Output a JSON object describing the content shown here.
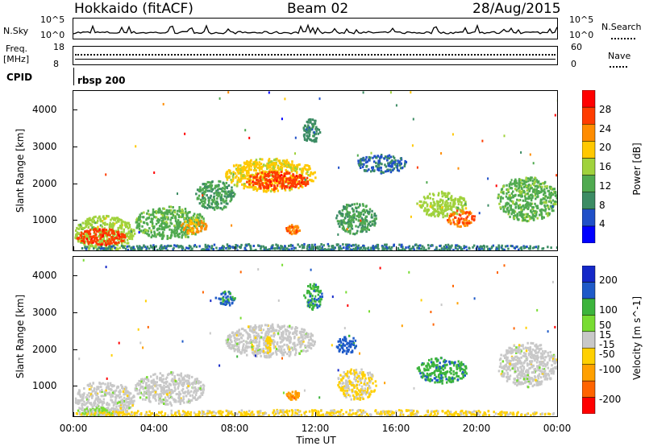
{
  "header": {
    "station": "Hokkaido (fitACF)",
    "beam": "Beam 02",
    "date": "28/Aug/2015"
  },
  "noise_panel": {
    "left_label": "N.Sky",
    "right_label": "N.Search",
    "left_ticks": [
      "10^5",
      "10^0"
    ],
    "right_ticks": [
      "10^5",
      "10^0"
    ]
  },
  "freq_panel": {
    "left_label_1": "Freq.",
    "left_label_2": "[MHz]",
    "right_label": "Nave",
    "left_ticks": [
      "18",
      "8"
    ],
    "right_ticks": [
      "60",
      "0"
    ]
  },
  "cpid_panel": {
    "label": "CPID",
    "value": "rbsp 200"
  },
  "colors": {
    "velocity_scale": [
      "#ff0000",
      "#ff6400",
      "#ffa000",
      "#ffd000",
      "#c8c8c8",
      "#78dc32",
      "#3cb43c",
      "#1e5ac8",
      "#1428c8"
    ],
    "power_scale": [
      "#0000ff",
      "#2050c8",
      "#3c8c64",
      "#50aa50",
      "#a0d23c",
      "#ffc800",
      "#ff8c00",
      "#ff3c00",
      "#ff0000"
    ]
  },
  "chart_data": [
    {
      "type": "heatmap",
      "title": "",
      "quantity": "Power",
      "xlabel": "",
      "ylabel": "Slant Range [km]",
      "x_ticks": [
        "00:00",
        "04:00",
        "08:00",
        "12:00",
        "16:00",
        "20:00",
        "00:00"
      ],
      "x_range_hours": [
        0,
        24
      ],
      "y_ticks": [
        1000,
        2000,
        3000,
        4000
      ],
      "ylim": [
        180,
        4500
      ],
      "colorbar": {
        "label": "Power [dB]",
        "ticks": [
          4,
          8,
          12,
          16,
          20,
          24,
          28
        ],
        "range": [
          0,
          32
        ]
      },
      "regions": [
        {
          "t_start": 0.0,
          "t_end": 3.0,
          "r_min": 180,
          "r_max": 1150,
          "level": 16
        },
        {
          "t_start": 0.1,
          "t_end": 2.6,
          "r_min": 350,
          "r_max": 800,
          "level": 27
        },
        {
          "t_start": 3.0,
          "t_end": 6.5,
          "r_min": 500,
          "r_max": 1400,
          "level": 13
        },
        {
          "t_start": 5.3,
          "t_end": 6.6,
          "r_min": 650,
          "r_max": 1050,
          "level": 22
        },
        {
          "t_start": 6.0,
          "t_end": 8.0,
          "r_min": 1300,
          "r_max": 2100,
          "level": 11
        },
        {
          "t_start": 7.5,
          "t_end": 12.0,
          "r_min": 1800,
          "r_max": 2700,
          "level": 19
        },
        {
          "t_start": 8.5,
          "t_end": 11.7,
          "r_min": 1850,
          "r_max": 2350,
          "level": 27
        },
        {
          "t_start": 11.3,
          "t_end": 12.2,
          "r_min": 3100,
          "r_max": 3800,
          "level": 9
        },
        {
          "t_start": 10.5,
          "t_end": 11.2,
          "r_min": 650,
          "r_max": 900,
          "level": 24
        },
        {
          "t_start": 13.0,
          "t_end": 15.0,
          "r_min": 650,
          "r_max": 1500,
          "level": 11
        },
        {
          "t_start": 14.0,
          "t_end": 16.5,
          "r_min": 2300,
          "r_max": 2800,
          "level": 7
        },
        {
          "t_start": 17.0,
          "t_end": 19.5,
          "r_min": 1100,
          "r_max": 1800,
          "level": 16
        },
        {
          "t_start": 18.5,
          "t_end": 19.9,
          "r_min": 850,
          "r_max": 1300,
          "level": 25
        },
        {
          "t_start": 21.0,
          "t_end": 24.0,
          "r_min": 1000,
          "r_max": 2200,
          "level": 13
        },
        {
          "t_start": 0.0,
          "t_end": 24.0,
          "r_min": 180,
          "r_max": 380,
          "level": 8
        }
      ]
    },
    {
      "type": "heatmap",
      "title": "",
      "quantity": "Velocity",
      "xlabel": "Time UT",
      "ylabel": "Slant Range [km]",
      "x_ticks": [
        "00:00",
        "04:00",
        "08:00",
        "12:00",
        "16:00",
        "20:00",
        "00:00"
      ],
      "x_range_hours": [
        0,
        24
      ],
      "y_ticks": [
        1000,
        2000,
        3000,
        4000
      ],
      "ylim": [
        180,
        4500
      ],
      "colorbar": {
        "label": "Velocity [m s^-1]",
        "ticks": [
          -200,
          -100,
          -50,
          -15,
          15,
          50,
          100,
          200
        ],
        "range": [
          -250,
          250
        ]
      },
      "regions": [
        {
          "t_start": 0.0,
          "t_end": 3.0,
          "r_min": 180,
          "r_max": 1150,
          "level": 0
        },
        {
          "t_start": 0.1,
          "t_end": 2.0,
          "r_min": 180,
          "r_max": 450,
          "level": 40
        },
        {
          "t_start": 3.0,
          "t_end": 6.5,
          "r_min": 500,
          "r_max": 1400,
          "level": 0
        },
        {
          "t_start": 7.5,
          "t_end": 12.0,
          "r_min": 1800,
          "r_max": 2700,
          "level": 0
        },
        {
          "t_start": 9.5,
          "t_end": 9.8,
          "r_min": 1900,
          "r_max": 2400,
          "level": -40
        },
        {
          "t_start": 11.4,
          "t_end": 12.3,
          "r_min": 3100,
          "r_max": 3800,
          "level": 120
        },
        {
          "t_start": 7.0,
          "t_end": 8.0,
          "r_min": 3200,
          "r_max": 3600,
          "level": 150
        },
        {
          "t_start": 10.5,
          "t_end": 11.2,
          "r_min": 650,
          "r_max": 900,
          "level": -120
        },
        {
          "t_start": 13.0,
          "t_end": 14.0,
          "r_min": 1900,
          "r_max": 2400,
          "level": 160
        },
        {
          "t_start": 13.0,
          "t_end": 15.0,
          "r_min": 650,
          "r_max": 1500,
          "level": -30
        },
        {
          "t_start": 17.0,
          "t_end": 19.5,
          "r_min": 1100,
          "r_max": 1800,
          "level": 120
        },
        {
          "t_start": 21.0,
          "t_end": 24.0,
          "r_min": 1000,
          "r_max": 2200,
          "level": 0
        },
        {
          "t_start": 0.0,
          "t_end": 24.0,
          "r_min": 180,
          "r_max": 380,
          "level": -40
        }
      ]
    }
  ]
}
